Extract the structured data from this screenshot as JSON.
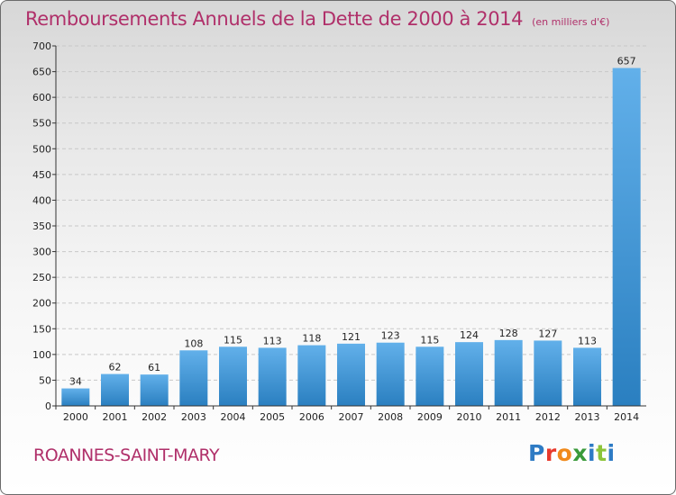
{
  "title": "Remboursements Annuels de la Dette de 2000 à 2014",
  "unit_label": "(en milliers d'€)",
  "commune": "ROANNES-SAINT-MARY",
  "logo": {
    "text": "Proxiti",
    "letter_colors": [
      "#2e7bc4",
      "#e8392c",
      "#f08a1c",
      "#3a9a3a",
      "#2e7bc4",
      "#8cc43a",
      "#2e7bc4"
    ]
  },
  "colors": {
    "title": "#b0306a",
    "bar_light": "#62b0ea",
    "bar_dark": "#2a7fc0",
    "grid": "#c8c8c8",
    "axis": "#333333"
  },
  "chart_data": {
    "type": "bar",
    "title": "Remboursements Annuels de la Dette de 2000 à 2014",
    "subtitle": "(en milliers d'€)",
    "xlabel": "",
    "ylabel": "",
    "categories": [
      "2000",
      "2001",
      "2002",
      "2003",
      "2004",
      "2005",
      "2006",
      "2007",
      "2008",
      "2009",
      "2010",
      "2011",
      "2012",
      "2013",
      "2014"
    ],
    "values": [
      34,
      62,
      61,
      108,
      115,
      113,
      118,
      121,
      123,
      115,
      124,
      128,
      127,
      113,
      657
    ],
    "data_labels": [
      "34",
      "62",
      "61",
      "108",
      "115",
      "113",
      "118",
      "121",
      "123",
      "115",
      "124",
      "128",
      "127",
      "113",
      "657"
    ],
    "ylim": [
      0,
      700
    ],
    "yticks": [
      0,
      50,
      100,
      150,
      200,
      250,
      300,
      350,
      400,
      450,
      500,
      550,
      600,
      650,
      700
    ],
    "grid": true,
    "legend": "none"
  }
}
